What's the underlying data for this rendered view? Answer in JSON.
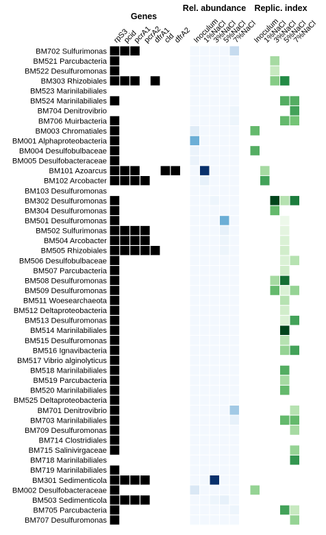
{
  "chart_data": [
    {
      "type": "heatmap",
      "title": "Genes",
      "xlabel": "",
      "ylabel": "",
      "columns": [
        "rpS3",
        "pcid",
        "pcrA1",
        "pcrA2",
        "dfrA1",
        "cld",
        "dfrA2"
      ],
      "rows": [
        "BM702 Sulfurimonas",
        "BM521 Parcubacteria",
        "BM522 Desulfuromonas",
        "BM303 Rhizobiales",
        "BM523 Marinilabiliales",
        "BM524 Marinilabiliales",
        "BM704 Denitrovibrio",
        "BM706 Muirbacteria",
        "BM003 Chromatiales",
        "BM001 Alphaproteobacteria",
        "BM004 Desulfobulbaceae",
        "BM005 Desulfobacteraceae",
        "BM101 Azoarcus",
        "BM102 Arcobacter",
        "BM103 Desulfuromonas",
        "BM302 Desulfuromonas",
        "BM304 Desulfuromonas",
        "BM501 Desulfuromonas",
        "BM502 Sulfurimonas",
        "BM504 Arcobacter",
        "BM505 Rhizobiales",
        "BM506 Desulfobulbaceae",
        "BM507 Parcubacteria",
        "BM508 Desulfuromonas",
        "BM509 Desulfuromonas",
        "BM511 Woesearchaeota",
        "BM512 Deltaproteobacteria",
        "BM513 Desulfuromonas",
        "BM514 Marinilabiliales",
        "BM515 Desulfuromonas",
        "BM516 Ignavibacteria",
        "BM517 Vibrio alginolyticus",
        "BM518 Marinilabiliales",
        "BM519 Parcubacteria",
        "BM520 Marinilabiliales",
        "BM525 Deltaproteobacteria",
        "BM701 Denitrovibrio",
        "BM703 Marinilabiliales",
        "BM709 Desulfuromonas",
        "BM714 Clostridiales",
        "BM715 Salinivirgaceae",
        "BM718 Marinilabiliales",
        "BM719 Marinilabiliales",
        "BM301 Sedimenticola",
        "BM002 Desulfobacteraceae",
        "BM503 Sedimenticola",
        "BM705 Parcubacteria",
        "BM707 Desulfuromonas"
      ],
      "values": [
        [
          1,
          1,
          1,
          0,
          0,
          0,
          0
        ],
        [
          1,
          0,
          0,
          0,
          0,
          0,
          0
        ],
        [
          1,
          0,
          0,
          0,
          0,
          0,
          0
        ],
        [
          1,
          1,
          1,
          0,
          1,
          0,
          0
        ],
        [
          0,
          0,
          0,
          0,
          0,
          0,
          0
        ],
        [
          1,
          0,
          0,
          0,
          0,
          0,
          0
        ],
        [
          0,
          0,
          0,
          0,
          0,
          0,
          0
        ],
        [
          1,
          0,
          0,
          0,
          0,
          0,
          0
        ],
        [
          1,
          0,
          0,
          0,
          0,
          0,
          0
        ],
        [
          1,
          0,
          0,
          0,
          0,
          0,
          0
        ],
        [
          1,
          0,
          0,
          0,
          0,
          0,
          0
        ],
        [
          1,
          0,
          0,
          0,
          0,
          0,
          0
        ],
        [
          1,
          1,
          1,
          0,
          0,
          1,
          1
        ],
        [
          1,
          1,
          1,
          1,
          0,
          0,
          0
        ],
        [
          0,
          0,
          0,
          0,
          0,
          0,
          0
        ],
        [
          1,
          0,
          0,
          0,
          0,
          0,
          0
        ],
        [
          1,
          0,
          0,
          0,
          0,
          0,
          0
        ],
        [
          1,
          0,
          0,
          0,
          0,
          0,
          0
        ],
        [
          1,
          1,
          1,
          1,
          0,
          0,
          0
        ],
        [
          1,
          1,
          1,
          1,
          0,
          0,
          0
        ],
        [
          1,
          1,
          1,
          1,
          1,
          0,
          0
        ],
        [
          1,
          0,
          0,
          0,
          0,
          0,
          0
        ],
        [
          1,
          0,
          0,
          0,
          0,
          0,
          0
        ],
        [
          1,
          0,
          0,
          0,
          0,
          0,
          0
        ],
        [
          1,
          0,
          0,
          0,
          0,
          0,
          0
        ],
        [
          1,
          0,
          0,
          0,
          0,
          0,
          0
        ],
        [
          1,
          0,
          0,
          0,
          0,
          0,
          0
        ],
        [
          1,
          0,
          0,
          0,
          0,
          0,
          0
        ],
        [
          1,
          0,
          0,
          0,
          0,
          0,
          0
        ],
        [
          1,
          0,
          0,
          0,
          0,
          0,
          0
        ],
        [
          1,
          0,
          0,
          0,
          0,
          0,
          0
        ],
        [
          1,
          0,
          0,
          0,
          0,
          0,
          0
        ],
        [
          1,
          0,
          0,
          0,
          0,
          0,
          0
        ],
        [
          1,
          0,
          0,
          0,
          0,
          0,
          0
        ],
        [
          1,
          0,
          0,
          0,
          0,
          0,
          0
        ],
        [
          1,
          0,
          0,
          0,
          0,
          0,
          0
        ],
        [
          1,
          0,
          0,
          0,
          0,
          0,
          0
        ],
        [
          1,
          0,
          0,
          0,
          0,
          0,
          0
        ],
        [
          1,
          0,
          0,
          0,
          0,
          0,
          0
        ],
        [
          1,
          0,
          0,
          0,
          0,
          0,
          0
        ],
        [
          1,
          0,
          0,
          0,
          0,
          0,
          0
        ],
        [
          0,
          0,
          0,
          0,
          0,
          0,
          0
        ],
        [
          1,
          0,
          0,
          0,
          0,
          0,
          0
        ],
        [
          1,
          1,
          1,
          1,
          0,
          0,
          0
        ],
        [
          1,
          0,
          0,
          0,
          0,
          0,
          0
        ],
        [
          1,
          1,
          1,
          1,
          0,
          0,
          0
        ],
        [
          1,
          0,
          0,
          0,
          0,
          0,
          0
        ],
        [
          1,
          0,
          0,
          0,
          0,
          0,
          0
        ]
      ],
      "colors": {
        "present": "#000000",
        "absent": "#ffffff"
      }
    },
    {
      "type": "heatmap",
      "title": "Rel. abundance",
      "xlabel": "",
      "ylabel": "",
      "columns": [
        "Inoculum",
        "1%NaCl",
        "3%NaCl",
        "5%NaCl",
        "7%NaCl"
      ],
      "value_range": [
        0,
        1
      ],
      "values": [
        [
          0.02,
          0.02,
          0.02,
          0.02,
          0.25
        ],
        [
          0.02,
          0.02,
          0.02,
          0.02,
          0.02
        ],
        [
          0.02,
          0.02,
          0.02,
          0.02,
          0.02
        ],
        [
          0.02,
          0.02,
          0.02,
          0.02,
          0.02
        ],
        [
          0.02,
          0.02,
          0.02,
          0.02,
          0.02
        ],
        [
          0.02,
          0.02,
          0.02,
          0.02,
          0.02
        ],
        [
          0.02,
          0.02,
          0.02,
          0.02,
          0.05
        ],
        [
          0.02,
          0.02,
          0.02,
          0.02,
          0.05
        ],
        [
          0.12,
          0.02,
          0.02,
          0.02,
          0.02
        ],
        [
          0.5,
          0.02,
          0.02,
          0.02,
          0.02
        ],
        [
          0.06,
          0.02,
          0.02,
          0.02,
          0.02
        ],
        [
          0.06,
          0.02,
          0.02,
          0.02,
          0.02
        ],
        [
          0.02,
          1.0,
          0.02,
          0.02,
          0.02
        ],
        [
          0.02,
          0.08,
          0.02,
          0.02,
          0.02
        ],
        [
          0.02,
          0.02,
          0.02,
          0.02,
          0.02
        ],
        [
          0.02,
          0.02,
          0.05,
          0.02,
          0.02
        ],
        [
          0.02,
          0.02,
          0.02,
          0.02,
          0.02
        ],
        [
          0.02,
          0.02,
          0.02,
          0.5,
          0.02
        ],
        [
          0.02,
          0.02,
          0.02,
          0.08,
          0.02
        ],
        [
          0.02,
          0.02,
          0.02,
          0.05,
          0.02
        ],
        [
          0.02,
          0.02,
          0.02,
          0.05,
          0.02
        ],
        [
          0.02,
          0.02,
          0.02,
          0.02,
          0.02
        ],
        [
          0.02,
          0.02,
          0.02,
          0.02,
          0.02
        ],
        [
          0.02,
          0.02,
          0.02,
          0.02,
          0.02
        ],
        [
          0.02,
          0.02,
          0.02,
          0.02,
          0.02
        ],
        [
          0.02,
          0.02,
          0.02,
          0.02,
          0.02
        ],
        [
          0.02,
          0.02,
          0.02,
          0.02,
          0.02
        ],
        [
          0.02,
          0.02,
          0.02,
          0.02,
          0.02
        ],
        [
          0.02,
          0.02,
          0.02,
          0.02,
          0.02
        ],
        [
          0.02,
          0.02,
          0.02,
          0.02,
          0.02
        ],
        [
          0.02,
          0.02,
          0.02,
          0.02,
          0.02
        ],
        [
          0.02,
          0.02,
          0.02,
          0.02,
          0.02
        ],
        [
          0.02,
          0.02,
          0.02,
          0.02,
          0.02
        ],
        [
          0.02,
          0.02,
          0.02,
          0.02,
          0.02
        ],
        [
          0.02,
          0.02,
          0.02,
          0.02,
          0.02
        ],
        [
          0.02,
          0.02,
          0.02,
          0.02,
          0.02
        ],
        [
          0.02,
          0.02,
          0.02,
          0.02,
          0.35
        ],
        [
          0.02,
          0.02,
          0.02,
          0.02,
          0.08
        ],
        [
          0.02,
          0.02,
          0.02,
          0.02,
          0.02
        ],
        [
          0.02,
          0.02,
          0.02,
          0.02,
          0.02
        ],
        [
          0.02,
          0.02,
          0.02,
          0.02,
          0.02
        ],
        [
          0.02,
          0.02,
          0.02,
          0.02,
          0.02
        ],
        [
          0.02,
          0.02,
          0.02,
          0.02,
          0.02
        ],
        [
          0.02,
          0.02,
          1.0,
          0.02,
          0.02
        ],
        [
          0.15,
          0.02,
          0.02,
          0.02,
          0.02
        ],
        [
          0.02,
          0.02,
          0.05,
          0.08,
          0.02
        ],
        [
          0.02,
          0.02,
          0.02,
          0.02,
          0.05
        ],
        [
          0.02,
          0.02,
          0.02,
          0.02,
          0.02
        ]
      ],
      "colormap": "Blues"
    },
    {
      "type": "heatmap",
      "title": "Replic. index",
      "xlabel": "",
      "ylabel": "",
      "columns": [
        "Inoculum",
        "1%NaCl",
        "3%NaCl",
        "5%NaCl",
        "7%NaCl"
      ],
      "value_range": [
        0,
        1
      ],
      "values": [
        [
          null,
          null,
          null,
          null,
          null
        ],
        [
          null,
          null,
          0.35,
          null,
          null
        ],
        [
          null,
          null,
          0.25,
          null,
          null
        ],
        [
          null,
          null,
          0.45,
          0.75,
          null
        ],
        [
          null,
          null,
          null,
          null,
          null
        ],
        [
          null,
          null,
          null,
          0.6,
          0.6
        ],
        [
          null,
          null,
          null,
          null,
          0.65
        ],
        [
          null,
          null,
          null,
          0.55,
          0.5
        ],
        [
          0.55,
          null,
          null,
          null,
          null
        ],
        [
          null,
          null,
          null,
          null,
          null
        ],
        [
          0.6,
          null,
          null,
          null,
          null
        ],
        [
          null,
          null,
          null,
          null,
          null
        ],
        [
          null,
          0.35,
          null,
          null,
          null
        ],
        [
          null,
          0.65,
          null,
          null,
          null
        ],
        [
          null,
          null,
          null,
          null,
          null
        ],
        [
          null,
          null,
          1.0,
          0.3,
          0.8
        ],
        [
          null,
          null,
          0.55,
          null,
          null
        ],
        [
          null,
          null,
          null,
          0.05,
          null
        ],
        [
          null,
          null,
          null,
          0.1,
          null
        ],
        [
          null,
          null,
          null,
          0.15,
          null
        ],
        [
          null,
          null,
          null,
          0.2,
          null
        ],
        [
          null,
          null,
          null,
          0.15,
          0.3
        ],
        [
          null,
          null,
          null,
          0.2,
          null
        ],
        [
          null,
          null,
          0.35,
          0.85,
          null
        ],
        [
          null,
          null,
          0.55,
          0.15,
          0.4
        ],
        [
          null,
          null,
          null,
          0.3,
          null
        ],
        [
          null,
          null,
          null,
          0.2,
          null
        ],
        [
          null,
          null,
          null,
          0.15,
          0.65
        ],
        [
          null,
          null,
          null,
          1.0,
          null
        ],
        [
          null,
          null,
          null,
          0.3,
          null
        ],
        [
          null,
          null,
          null,
          0.4,
          0.65
        ],
        [
          null,
          null,
          null,
          null,
          null
        ],
        [
          null,
          null,
          null,
          0.6,
          null
        ],
        [
          null,
          null,
          null,
          0.35,
          null
        ],
        [
          null,
          null,
          null,
          0.55,
          null
        ],
        [
          null,
          null,
          null,
          null,
          null
        ],
        [
          null,
          null,
          null,
          null,
          0.3
        ],
        [
          null,
          null,
          null,
          0.55,
          0.55
        ],
        [
          null,
          null,
          null,
          null,
          0.35
        ],
        [
          null,
          null,
          null,
          null,
          null
        ],
        [
          null,
          null,
          null,
          null,
          0.4
        ],
        [
          null,
          null,
          null,
          null,
          0.7
        ],
        [
          null,
          null,
          null,
          null,
          null
        ],
        [
          null,
          null,
          null,
          null,
          null
        ],
        [
          0.4,
          null,
          null,
          null,
          null
        ],
        [
          null,
          null,
          null,
          null,
          null
        ],
        [
          null,
          null,
          null,
          0.65,
          0.25
        ],
        [
          null,
          null,
          null,
          null,
          0.4
        ]
      ],
      "colormap": "Greens"
    }
  ]
}
